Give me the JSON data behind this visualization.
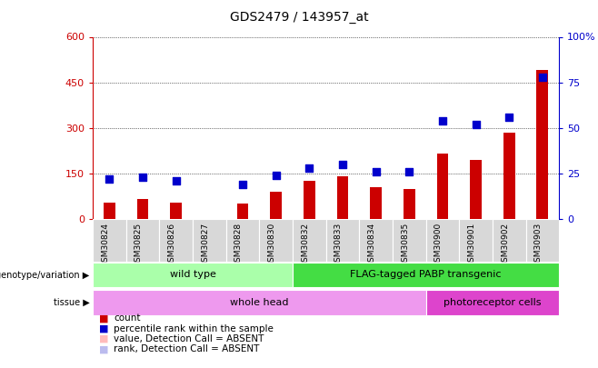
{
  "title": "GDS2479 / 143957_at",
  "samples": [
    "GSM30824",
    "GSM30825",
    "GSM30826",
    "GSM30827",
    "GSM30828",
    "GSM30830",
    "GSM30832",
    "GSM30833",
    "GSM30834",
    "GSM30835",
    "GSM30900",
    "GSM30901",
    "GSM30902",
    "GSM30903"
  ],
  "count_values": [
    55,
    65,
    55,
    0,
    50,
    90,
    125,
    140,
    105,
    100,
    215,
    195,
    285,
    490
  ],
  "rank_values": [
    22,
    23,
    21,
    0,
    19,
    24,
    28,
    30,
    26,
    26,
    54,
    52,
    56,
    78
  ],
  "absent_count_indices": [
    3
  ],
  "absent_rank_indices": [
    3
  ],
  "count_color": "#cc0000",
  "rank_color": "#0000cc",
  "absent_count_color": "#ffbbbb",
  "absent_rank_color": "#bbbbee",
  "ylim_left": [
    0,
    600
  ],
  "ylim_right": [
    0,
    100
  ],
  "yticks_left": [
    0,
    150,
    300,
    450,
    600
  ],
  "yticks_right": [
    0,
    25,
    50,
    75,
    100
  ],
  "genotype_groups": [
    {
      "label": "wild type",
      "start": 0,
      "end": 5,
      "color": "#aaffaa"
    },
    {
      "label": "FLAG-tagged PABP transgenic",
      "start": 6,
      "end": 13,
      "color": "#44dd44"
    }
  ],
  "tissue_groups": [
    {
      "label": "whole head",
      "start": 0,
      "end": 9,
      "color": "#ee99ee"
    },
    {
      "label": "photoreceptor cells",
      "start": 10,
      "end": 13,
      "color": "#dd44cc"
    }
  ],
  "legend_items": [
    {
      "label": "count",
      "color": "#cc0000"
    },
    {
      "label": "percentile rank within the sample",
      "color": "#0000cc"
    },
    {
      "label": "value, Detection Call = ABSENT",
      "color": "#ffbbbb"
    },
    {
      "label": "rank, Detection Call = ABSENT",
      "color": "#bbbbee"
    }
  ],
  "bar_width": 0.35,
  "dot_size": 30,
  "background_color": "#ffffff",
  "plot_bg_color": "#ffffff",
  "cell_bg_color": "#d8d8d8"
}
